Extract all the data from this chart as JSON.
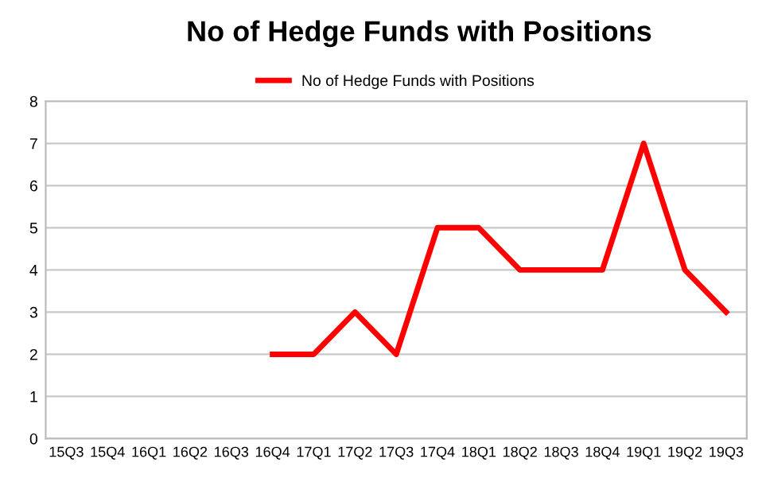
{
  "chart_data": {
    "type": "line",
    "title": "No of Hedge Funds with Positions",
    "categories": [
      "15Q3",
      "15Q4",
      "16Q1",
      "16Q2",
      "16Q3",
      "16Q4",
      "17Q1",
      "17Q2",
      "17Q3",
      "17Q4",
      "18Q1",
      "18Q2",
      "18Q3",
      "18Q4",
      "19Q1",
      "19Q2",
      "19Q3"
    ],
    "series": [
      {
        "name": "No of Hedge Funds with Positions",
        "color": "#ff0000",
        "values": [
          null,
          null,
          null,
          null,
          null,
          2,
          2,
          3,
          2,
          5,
          5,
          4,
          4,
          4,
          7,
          4,
          3
        ]
      }
    ],
    "ylim": [
      0,
      8
    ],
    "yticks": [
      0,
      1,
      2,
      3,
      4,
      5,
      6,
      7,
      8
    ],
    "grid": "y",
    "legend": "top",
    "marker": "none",
    "line_style": "solid"
  }
}
